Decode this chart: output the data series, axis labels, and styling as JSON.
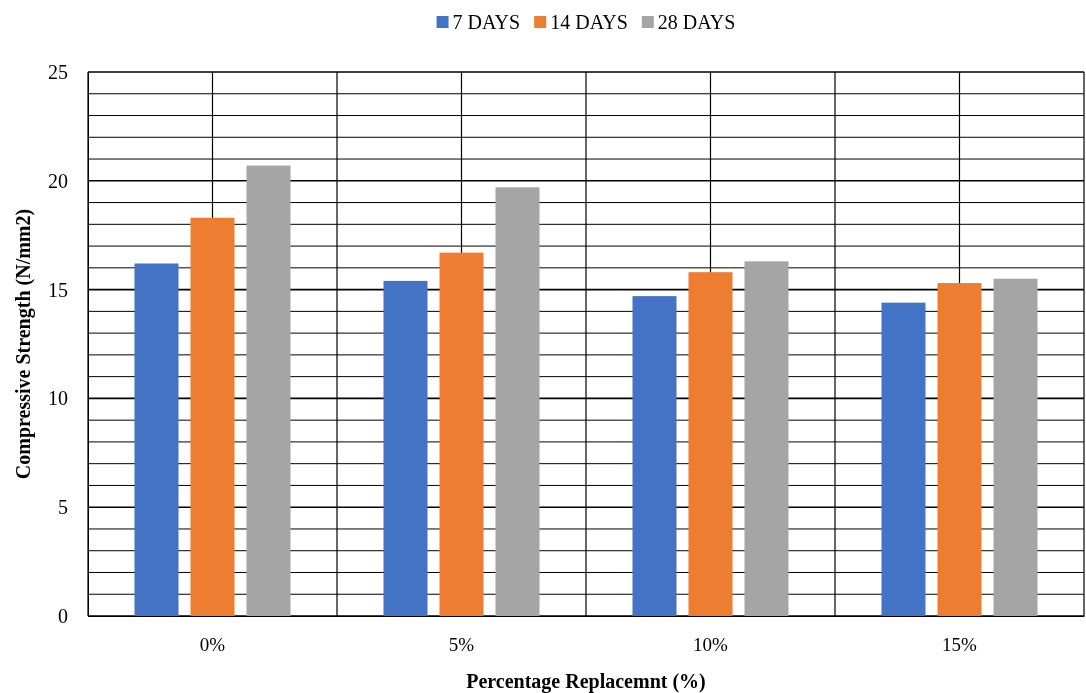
{
  "chart_data": {
    "type": "bar",
    "xlabel": "Percentage Replacemnt (%)",
    "ylabel": "Compressive Strength (N/mm2)",
    "categories": [
      "0%",
      "5%",
      "10%",
      "15%"
    ],
    "series": [
      {
        "name": "7 DAYS",
        "color": "#4472c4",
        "values": [
          16.2,
          15.4,
          14.7,
          14.4
        ]
      },
      {
        "name": "14 DAYS",
        "color": "#ed7d31",
        "values": [
          18.3,
          16.7,
          15.8,
          15.3
        ]
      },
      {
        "name": "28 DAYS",
        "color": "#a5a5a5",
        "values": [
          20.7,
          19.7,
          16.3,
          15.5
        ]
      }
    ],
    "ylim": [
      0,
      25
    ],
    "yticks": [
      0,
      {
        "value": 1,
        "label": null
      },
      {
        "value": 2,
        "label": null
      },
      {
        "value": 3,
        "label": null
      },
      {
        "value": 4,
        "label": null
      },
      5,
      {
        "value": 6,
        "label": null
      },
      {
        "value": 7,
        "label": null
      },
      {
        "value": 8,
        "label": null
      },
      {
        "value": 9,
        "label": null
      },
      10,
      {
        "value": 11,
        "label": null
      },
      {
        "value": 12,
        "label": null
      },
      {
        "value": 13,
        "label": null
      },
      {
        "value": 14,
        "label": null
      },
      15,
      {
        "value": 16,
        "label": null
      },
      {
        "value": 17,
        "label": null
      },
      {
        "value": 18,
        "label": null
      },
      {
        "value": 19,
        "label": null
      },
      20,
      {
        "value": 21,
        "label": null
      },
      {
        "value": 22,
        "label": null
      },
      {
        "value": 23,
        "label": null
      },
      {
        "value": 24,
        "label": null
      },
      25
    ],
    "grid": true,
    "legend": "top"
  }
}
